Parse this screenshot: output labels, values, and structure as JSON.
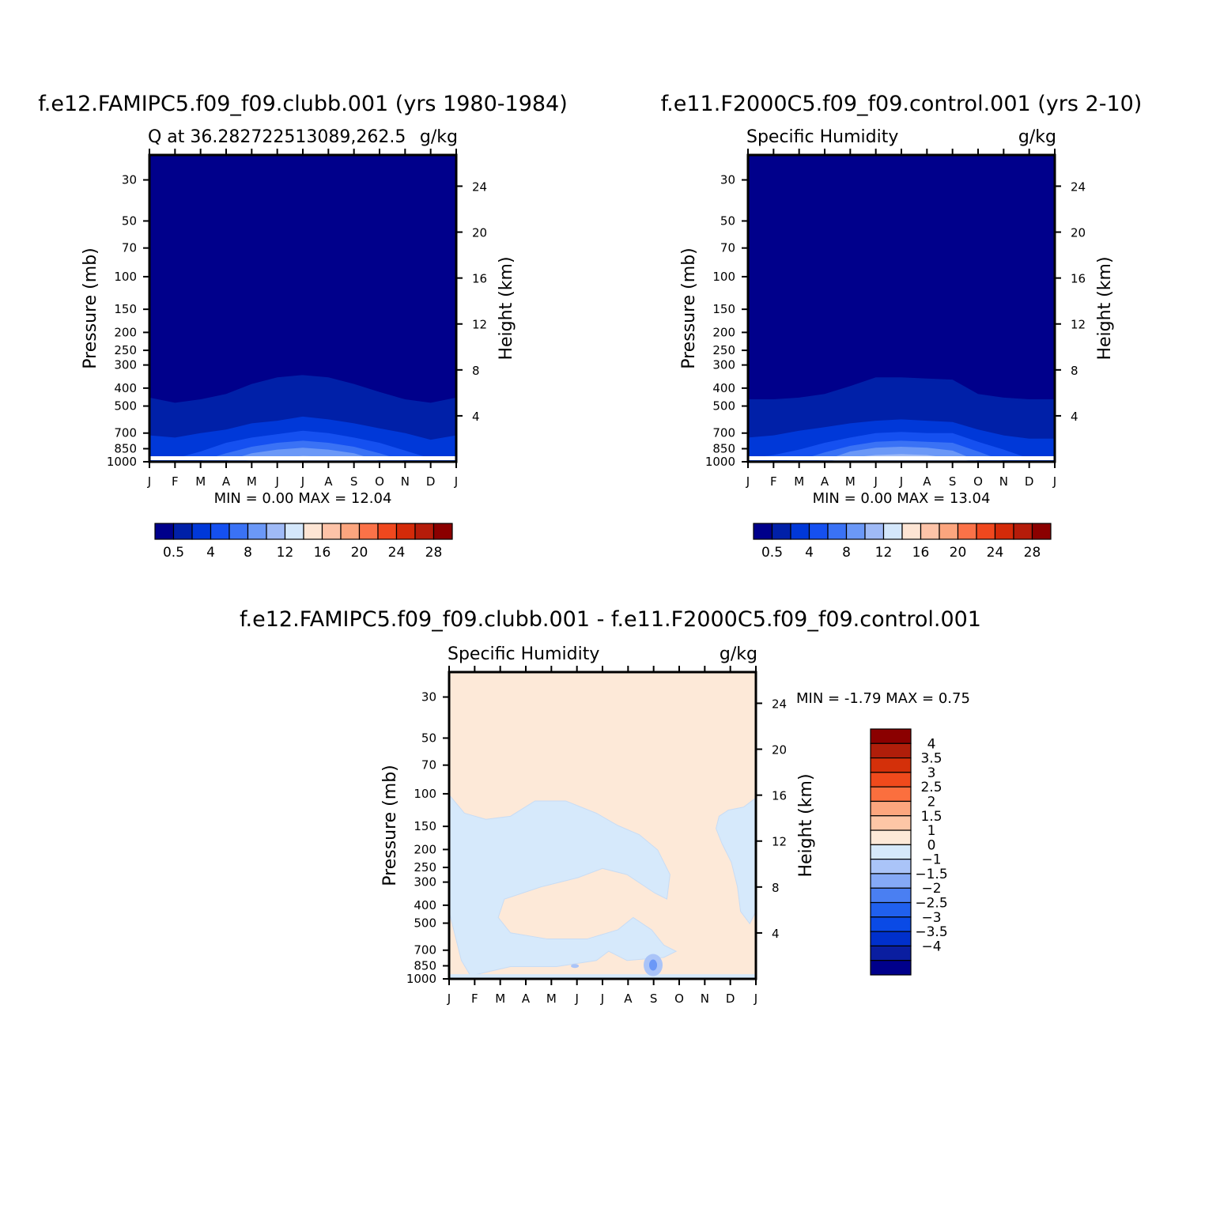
{
  "chart_data": [
    {
      "type": "heatmap",
      "title": "f.e12.FAMIPC5.f09_f09.clubb.001 (yrs 1980-1984)",
      "left_label": "Q at 36.282722513089,262.5",
      "units": "g/kg",
      "xlabel": "",
      "ylabel": "Pressure (mb)",
      "ylabel_right": "Height (km)",
      "x_ticks": [
        "J",
        "F",
        "M",
        "A",
        "M",
        "J",
        "J",
        "A",
        "S",
        "O",
        "N",
        "D",
        "J"
      ],
      "y_ticks": [
        30,
        50,
        70,
        100,
        150,
        200,
        250,
        300,
        400,
        500,
        700,
        850,
        1000
      ],
      "y_right_ticks": [
        4,
        8,
        12,
        16,
        20,
        24
      ],
      "ylim": [
        1000,
        22
      ],
      "min_text": "MIN =",
      "min_value": "0.00",
      "max_text": "MAX =",
      "max_value": "12.04",
      "contour_levels": [
        0.5,
        2,
        4,
        6,
        8,
        10,
        12,
        14,
        16,
        18,
        20,
        22,
        24,
        26,
        28
      ],
      "colorbar_labels": [
        "0.5",
        "4",
        "8",
        "12",
        "16",
        "20",
        "24",
        "28"
      ],
      "contour_boundaries_mb": [
        {
          "level": 0.5,
          "values": [
            450,
            480,
            460,
            430,
            380,
            350,
            340,
            350,
            380,
            420,
            460,
            480,
            450
          ]
        },
        {
          "level": 2,
          "values": [
            720,
            740,
            700,
            670,
            620,
            600,
            570,
            590,
            620,
            660,
            700,
            760,
            720
          ]
        },
        {
          "level": 4,
          "values": [
            960,
            960,
            880,
            790,
            740,
            710,
            680,
            700,
            740,
            790,
            870,
            960,
            960
          ]
        },
        {
          "level": 6,
          "values": [
            990,
            990,
            990,
            900,
            830,
            790,
            770,
            790,
            830,
            900,
            990,
            990,
            990
          ]
        },
        {
          "level": 8,
          "values": [
            1000,
            1000,
            1000,
            990,
            900,
            860,
            840,
            860,
            900,
            990,
            1000,
            1000,
            1000
          ]
        },
        {
          "level": 10,
          "values": [
            1000,
            1000,
            1000,
            1000,
            980,
            950,
            930,
            940,
            980,
            1000,
            1000,
            1000,
            1000
          ]
        }
      ]
    },
    {
      "type": "heatmap",
      "title": "f.e11.F2000C5.f09_f09.control.001 (yrs 2-10)",
      "left_label": "Specific Humidity",
      "units": "g/kg",
      "xlabel": "",
      "ylabel": "Pressure (mb)",
      "ylabel_right": "Height (km)",
      "x_ticks": [
        "J",
        "F",
        "M",
        "A",
        "M",
        "J",
        "J",
        "A",
        "S",
        "O",
        "N",
        "D",
        "J"
      ],
      "y_ticks": [
        30,
        50,
        70,
        100,
        150,
        200,
        250,
        300,
        400,
        500,
        700,
        850,
        1000
      ],
      "y_right_ticks": [
        4,
        8,
        12,
        16,
        20,
        24
      ],
      "ylim": [
        1000,
        22
      ],
      "min_text": "MIN =",
      "min_value": "0.00",
      "max_text": "MAX =",
      "max_value": "13.04",
      "contour_levels": [
        0.5,
        2,
        4,
        6,
        8,
        10,
        12,
        14,
        16,
        18,
        20,
        22,
        24,
        26,
        28
      ],
      "colorbar_labels": [
        "0.5",
        "4",
        "8",
        "12",
        "16",
        "20",
        "24",
        "28"
      ],
      "contour_boundaries_mb": [
        {
          "level": 0.5,
          "values": [
            460,
            460,
            450,
            430,
            390,
            350,
            350,
            355,
            360,
            430,
            450,
            460,
            460
          ]
        },
        {
          "level": 2,
          "values": [
            740,
            720,
            680,
            650,
            620,
            600,
            590,
            600,
            610,
            670,
            720,
            750,
            750
          ]
        },
        {
          "level": 4,
          "values": [
            960,
            920,
            860,
            790,
            740,
            700,
            690,
            700,
            700,
            780,
            860,
            960,
            960
          ]
        },
        {
          "level": 6,
          "values": [
            990,
            990,
            980,
            890,
            820,
            780,
            770,
            780,
            790,
            880,
            990,
            990,
            990
          ]
        },
        {
          "level": 8,
          "values": [
            1000,
            1000,
            1000,
            980,
            880,
            840,
            830,
            840,
            870,
            990,
            1000,
            1000,
            1000
          ]
        },
        {
          "level": 10,
          "values": [
            1000,
            1000,
            1000,
            1000,
            950,
            920,
            910,
            920,
            960,
            1000,
            1000,
            1000,
            1000
          ]
        }
      ]
    },
    {
      "type": "heatmap",
      "title": "f.e12.FAMIPC5.f09_f09.clubb.001 - f.e11.F2000C5.f09_f09.control.001",
      "left_label": "Specific Humidity",
      "units": "g/kg",
      "xlabel": "",
      "ylabel": "Pressure (mb)",
      "ylabel_right": "Height (km)",
      "x_ticks": [
        "J",
        "F",
        "M",
        "A",
        "M",
        "J",
        "J",
        "A",
        "S",
        "O",
        "N",
        "D",
        "J"
      ],
      "y_ticks": [
        30,
        50,
        70,
        100,
        150,
        200,
        250,
        300,
        400,
        500,
        700,
        850,
        1000
      ],
      "y_right_ticks": [
        4,
        8,
        12,
        16,
        20,
        24
      ],
      "ylim": [
        1000,
        22
      ],
      "min_text": "MIN =",
      "min_value": "-1.79",
      "max_text": "MAX =",
      "max_value": "0.75",
      "contour_levels": [
        -4,
        -3.5,
        -3,
        -2.5,
        -2,
        -1.5,
        -1,
        0,
        1,
        1.5,
        2,
        2.5,
        3,
        3.5,
        4
      ],
      "colorbar_labels": [
        "4",
        "3.5",
        "3",
        "2.5",
        "2",
        "1.5",
        "1",
        "0",
        "-1",
        "-1.5",
        "-2",
        "-2.5",
        "-3",
        "-3.5",
        "-4"
      ],
      "regions": [
        {
          "value_range": [
            0,
            1
          ],
          "description": "background"
        },
        {
          "value_range": [
            -1,
            0
          ],
          "description": "upper-tropospheric negative band and lower-level negative patches"
        },
        {
          "value_range": [
            -1.5,
            -1
          ],
          "description": "small near-surface patch in September"
        }
      ]
    }
  ]
}
